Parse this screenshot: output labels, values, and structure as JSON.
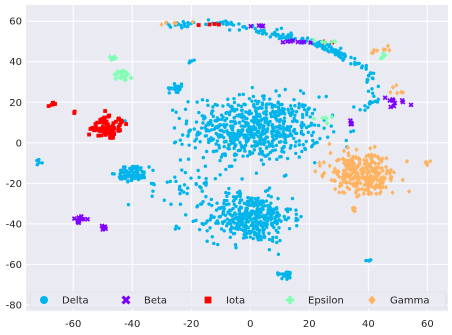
{
  "chart_data": {
    "type": "scatter",
    "title": "",
    "xlabel": "",
    "ylabel": "",
    "xlim": [
      -76,
      67
    ],
    "ylim": [
      -83,
      68
    ],
    "xticks": [
      -60,
      -40,
      -20,
      0,
      20,
      40,
      60
    ],
    "yticks": [
      -80,
      -60,
      -40,
      -20,
      0,
      20,
      40,
      60
    ],
    "grid": true,
    "background": "#EAEAF2",
    "grid_color": "#FFFFFF",
    "legend": {
      "position": "bottom",
      "columns": 5
    },
    "series": [
      {
        "name": "Delta",
        "color": "#00B5EB",
        "marker": "circle",
        "clusters": [
          {
            "cx": 2,
            "cy": 7,
            "sx": 11,
            "sy": 8,
            "n": 650
          },
          {
            "cx": 0,
            "cy": -37,
            "sx": 7,
            "sy": 6,
            "n": 420
          },
          {
            "cx": -40,
            "cy": -15,
            "sx": 2.5,
            "sy": 2,
            "n": 90
          },
          {
            "cx": -25,
            "cy": 27,
            "sx": 1.2,
            "sy": 1,
            "n": 25
          },
          {
            "cx": 12,
            "cy": -65,
            "sx": 1.5,
            "sy": 1,
            "n": 25
          },
          {
            "cx": -72,
            "cy": -9,
            "sx": 1.2,
            "sy": 0.8,
            "n": 8
          },
          {
            "cx": -20,
            "cy": 40,
            "sx": 0.5,
            "sy": 0.5,
            "n": 5
          },
          {
            "cx": 40,
            "cy": -58,
            "sx": 0.5,
            "sy": 0.4,
            "n": 4
          },
          {
            "cx": -25,
            "cy": -42,
            "sx": 0.5,
            "sy": 0.5,
            "n": 4
          },
          {
            "cx": -22,
            "cy": -20,
            "sx": 6,
            "sy": 5,
            "n": 45
          }
        ],
        "curves": [
          {
            "points": [
              [
                -30,
                58
              ],
              [
                -10,
                59
              ],
              [
                10,
                53
              ],
              [
                24,
                48
              ],
              [
                32,
                43
              ]
            ],
            "n": 150,
            "jitter": 0.8
          },
          {
            "points": [
              [
                10,
                56
              ],
              [
                30,
                45
              ],
              [
                40,
                35
              ],
              [
                42,
                22
              ],
              [
                38,
                15
              ]
            ],
            "n": 60,
            "jitter": 0.8
          }
        ]
      },
      {
        "name": "Beta",
        "color": "#8000FF",
        "marker": "x",
        "clusters": [
          {
            "cx": -58,
            "cy": -38,
            "sx": 1.2,
            "sy": 1,
            "n": 10
          },
          {
            "cx": -50,
            "cy": -42,
            "sx": 0.8,
            "sy": 0.8,
            "n": 6
          },
          {
            "cx": 15,
            "cy": 50,
            "sx": 3,
            "sy": 0.5,
            "n": 8
          },
          {
            "cx": 47,
            "cy": 20,
            "sx": 3,
            "sy": 1.5,
            "n": 10
          },
          {
            "cx": 34,
            "cy": 10,
            "sx": 1,
            "sy": 0.5,
            "n": 4
          },
          {
            "cx": 3,
            "cy": 57,
            "sx": 2,
            "sy": 1,
            "n": 5
          }
        ],
        "curves": []
      },
      {
        "name": "Iota",
        "color": "#FF0000",
        "marker": "square",
        "clusters": [
          {
            "cx": -48,
            "cy": 8,
            "sx": 2.5,
            "sy": 3,
            "n": 80
          },
          {
            "cx": -67,
            "cy": 19,
            "sx": 0.7,
            "sy": 0.6,
            "n": 6
          },
          {
            "cx": -60,
            "cy": 15,
            "sx": 0.3,
            "sy": 0.3,
            "n": 2
          },
          {
            "cx": -14,
            "cy": 58,
            "sx": 3,
            "sy": 0.5,
            "n": 4
          },
          {
            "cx": 28,
            "cy": 50,
            "sx": 2,
            "sy": 0.5,
            "n": 3
          }
        ],
        "curves": []
      },
      {
        "name": "Epsilon",
        "color": "#80FFB4",
        "marker": "plus",
        "clusters": [
          {
            "cx": -43,
            "cy": 33,
            "sx": 1.5,
            "sy": 1.2,
            "n": 20
          },
          {
            "cx": -46,
            "cy": 42,
            "sx": 0.7,
            "sy": 0.6,
            "n": 8
          },
          {
            "cx": 24,
            "cy": 50,
            "sx": 2,
            "sy": 0.6,
            "n": 6
          },
          {
            "cx": 25,
            "cy": 12,
            "sx": 2,
            "sy": 0.8,
            "n": 6
          },
          {
            "cx": 45,
            "cy": 42,
            "sx": 1.5,
            "sy": 1,
            "n": 5
          }
        ],
        "curves": []
      },
      {
        "name": "Gamma",
        "color": "#FFB360",
        "marker": "diamond",
        "clusters": [
          {
            "cx": 38,
            "cy": -15,
            "sx": 5.5,
            "sy": 5,
            "n": 300
          },
          {
            "cx": 60,
            "cy": -10,
            "sx": 0.6,
            "sy": 0.8,
            "n": 6
          },
          {
            "cx": 50,
            "cy": 26,
            "sx": 1.5,
            "sy": 1,
            "n": 6
          },
          {
            "cx": 45,
            "cy": 46,
            "sx": 2,
            "sy": 1,
            "n": 8
          },
          {
            "cx": -25,
            "cy": 59,
            "sx": 3,
            "sy": 0.5,
            "n": 5
          },
          {
            "cx": 35,
            "cy": -33,
            "sx": 1,
            "sy": 1,
            "n": 4
          }
        ],
        "curves": []
      }
    ]
  }
}
